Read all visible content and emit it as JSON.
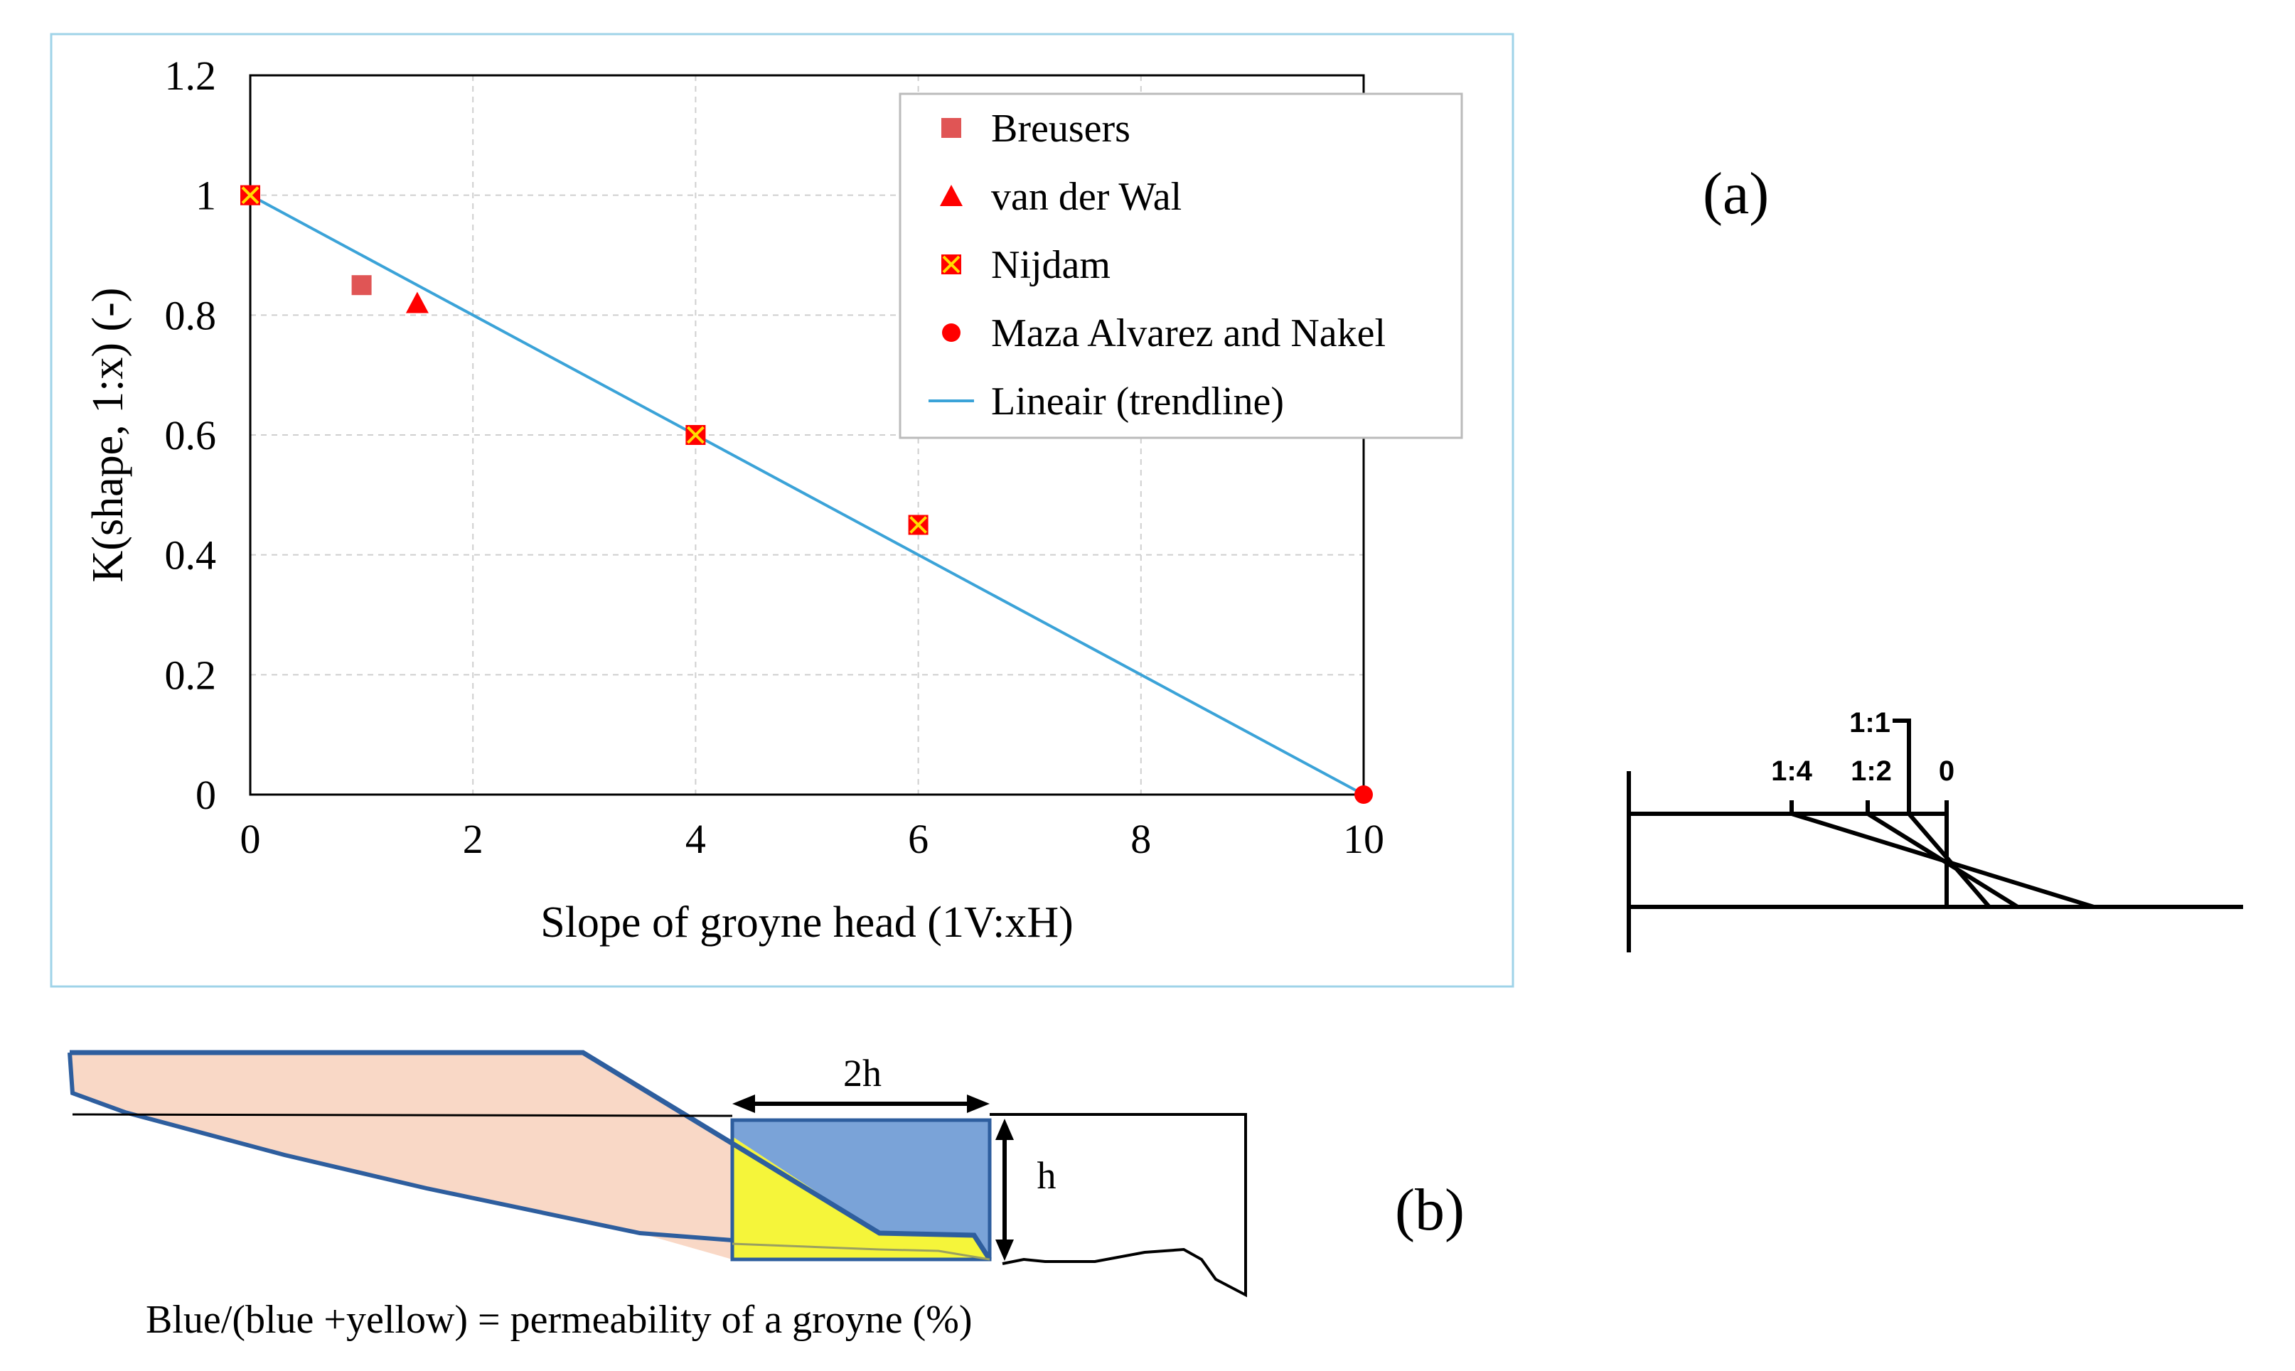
{
  "chart_data": {
    "type": "scatter",
    "title": "",
    "xlabel": "Slope of groyne head (1V:xH)",
    "ylabel": "K(shape, 1:x) (-)",
    "xlim": [
      0,
      10
    ],
    "ylim": [
      0,
      1.2
    ],
    "x_ticks": [
      "0",
      "2",
      "4",
      "6",
      "8",
      "10"
    ],
    "y_ticks": [
      "0",
      "0.2",
      "0.4",
      "0.6",
      "0.8",
      "1",
      "1.2"
    ],
    "grid": true,
    "legend_position": "top-right",
    "series": [
      {
        "name": "Breusers",
        "marker": "square",
        "color": "#e05555",
        "points": [
          {
            "x": 0,
            "y": 1.0
          },
          {
            "x": 1,
            "y": 0.85
          }
        ]
      },
      {
        "name": "van der Wal",
        "marker": "triangle",
        "color": "#ff0000",
        "points": [
          {
            "x": 1.5,
            "y": 0.82
          }
        ]
      },
      {
        "name": "Nijdam",
        "marker": "crossed-square",
        "color": "#ff0000",
        "points": [
          {
            "x": 0,
            "y": 1.0
          },
          {
            "x": 4,
            "y": 0.6
          },
          {
            "x": 6,
            "y": 0.45
          }
        ]
      },
      {
        "name": "Maza Alvarez and Nakel",
        "marker": "circle",
        "color": "#ff0000",
        "points": [
          {
            "x": 10,
            "y": 0.0
          }
        ]
      },
      {
        "name": "Lineair (trendline)",
        "marker": "line",
        "color": "#3ba3d8",
        "points": [
          {
            "x": 0,
            "y": 1.0
          },
          {
            "x": 10,
            "y": 0.0
          }
        ]
      }
    ]
  },
  "panel_labels": {
    "a": "(a)",
    "b": "(b)"
  },
  "slope_sketch": {
    "labels": [
      "1:4",
      "1:2",
      "1:1",
      "0"
    ]
  },
  "permeability_sketch": {
    "width_label": "2h",
    "height_label": "h",
    "caption": "Blue/(blue +yellow) = permeability of a groyne (%)",
    "colors": {
      "blue": "#7aa3d8",
      "yellow": "#f5f53a",
      "peach": "#f9d8c6",
      "outline": "#2e5e9e"
    }
  }
}
